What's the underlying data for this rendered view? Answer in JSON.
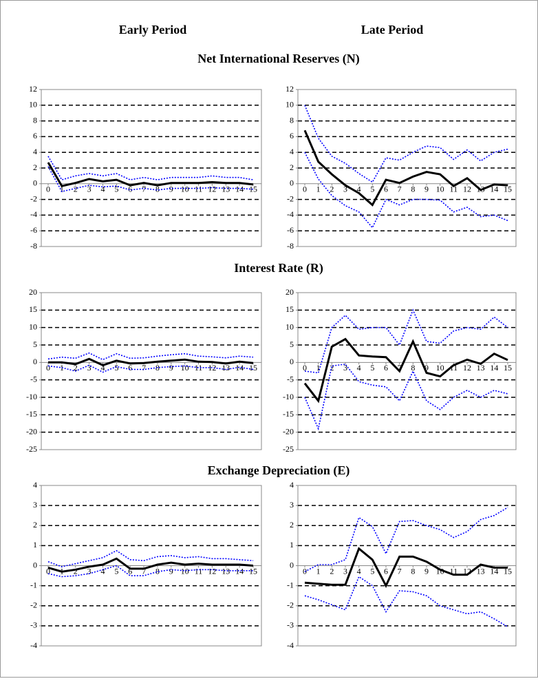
{
  "headers": [
    "Early Period",
    "Late Period"
  ],
  "section_titles": [
    "Net International Reserves (N)",
    "Interest Rate (R)",
    "Exchange Depreciation (E)"
  ],
  "chart_data": [
    {
      "type": "line",
      "x": [
        0,
        1,
        2,
        3,
        4,
        5,
        6,
        7,
        8,
        9,
        10,
        11,
        12,
        13,
        14,
        15
      ],
      "xlim": [
        0,
        15
      ],
      "xticks": [
        0,
        1,
        2,
        3,
        4,
        5,
        6,
        7,
        8,
        9,
        10,
        11,
        12,
        13,
        14,
        15
      ],
      "ylim": [
        -8,
        12
      ],
      "yticks": [
        -8,
        -6,
        -4,
        -2,
        0,
        2,
        4,
        6,
        8,
        10,
        12
      ],
      "grid": true,
      "series": [
        {
          "color": "#0000ff",
          "style": "dotted",
          "values": [
            3.5,
            0.5,
            1,
            1.3,
            1,
            1.3,
            0.5,
            0.8,
            0.5,
            0.8,
            0.8,
            0.8,
            1,
            0.8,
            0.8,
            0.5
          ]
        },
        {
          "color": "#0000ff",
          "style": "dotted",
          "values": [
            2.2,
            -1,
            -0.6,
            -0.2,
            -0.4,
            -0.3,
            -0.8,
            -0.6,
            -0.8,
            -0.6,
            -0.6,
            -0.6,
            -0.5,
            -0.6,
            -0.6,
            -0.7
          ]
        },
        {
          "color": "#000000",
          "style": "solid",
          "values": [
            2.7,
            -0.3,
            0.1,
            0.6,
            0.3,
            0.5,
            -0.2,
            0.1,
            -0.2,
            0.1,
            0.1,
            0.1,
            0.2,
            0.1,
            0.1,
            -0.1
          ]
        }
      ]
    },
    {
      "type": "line",
      "x": [
        0,
        1,
        2,
        3,
        4,
        5,
        6,
        7,
        8,
        9,
        10,
        11,
        12,
        13,
        14,
        15
      ],
      "xlim": [
        0,
        15
      ],
      "xticks": [
        0,
        1,
        2,
        3,
        4,
        5,
        6,
        7,
        8,
        9,
        10,
        11,
        12,
        13,
        14,
        15
      ],
      "ylim": [
        -8,
        12
      ],
      "yticks": [
        -8,
        -6,
        -4,
        -2,
        0,
        2,
        4,
        6,
        8,
        10,
        12
      ],
      "grid": true,
      "series": [
        {
          "color": "#0000ff",
          "style": "dotted",
          "values": [
            10,
            5.8,
            3.5,
            2.6,
            1.3,
            0.2,
            3.3,
            3,
            4,
            4.8,
            4.6,
            3.1,
            4.3,
            2.9,
            4,
            4.4
          ]
        },
        {
          "color": "#0000ff",
          "style": "dotted",
          "values": [
            4,
            0.6,
            -1.5,
            -2.8,
            -3.6,
            -5.6,
            -2,
            -2.7,
            -2,
            -2,
            -2.1,
            -3.6,
            -3,
            -4.2,
            -4,
            -4.7
          ]
        },
        {
          "color": "#000000",
          "style": "solid",
          "values": [
            6.8,
            2.8,
            1.2,
            -0.2,
            -1.2,
            -2.7,
            0.5,
            0.1,
            0.9,
            1.5,
            1.2,
            -0.3,
            0.7,
            -0.8,
            -0.1,
            -0.2
          ]
        }
      ]
    },
    {
      "type": "line",
      "x": [
        0,
        1,
        2,
        3,
        4,
        5,
        6,
        7,
        8,
        9,
        10,
        11,
        12,
        13,
        14,
        15
      ],
      "xlim": [
        0,
        15
      ],
      "xticks": [
        0,
        1,
        2,
        3,
        4,
        5,
        6,
        7,
        8,
        9,
        10,
        11,
        12,
        13,
        14,
        15
      ],
      "ylim": [
        -25,
        20
      ],
      "yticks": [
        -25,
        -20,
        -15,
        -10,
        -5,
        0,
        5,
        10,
        15,
        20
      ],
      "grid": true,
      "series": [
        {
          "color": "#0000ff",
          "style": "dotted",
          "values": [
            1,
            1.5,
            1.2,
            2.7,
            0.8,
            2.5,
            1.2,
            1.3,
            1.8,
            2.2,
            2.5,
            1.8,
            1.6,
            1.3,
            1.8,
            1.5
          ]
        },
        {
          "color": "#0000ff",
          "style": "dotted",
          "values": [
            -1,
            -1.5,
            -2.5,
            -0.8,
            -2.8,
            -1.2,
            -2,
            -2,
            -1.5,
            -1.2,
            -1,
            -1.5,
            -1.5,
            -2,
            -1.4,
            -2
          ]
        },
        {
          "color": "#000000",
          "style": "solid",
          "values": [
            0,
            0,
            -0.5,
            1,
            -0.8,
            0.5,
            -0.3,
            -0.2,
            0.2,
            0.5,
            0.8,
            0.2,
            0.1,
            -0.3,
            0.2,
            -0.2
          ]
        }
      ]
    },
    {
      "type": "line",
      "x": [
        0,
        1,
        2,
        3,
        4,
        5,
        6,
        7,
        8,
        9,
        10,
        11,
        12,
        13,
        14,
        15
      ],
      "xlim": [
        0,
        15
      ],
      "xticks": [
        0,
        1,
        2,
        3,
        4,
        5,
        6,
        7,
        8,
        9,
        10,
        11,
        12,
        13,
        14,
        15
      ],
      "ylim": [
        -25,
        20
      ],
      "yticks": [
        -25,
        -20,
        -15,
        -10,
        -5,
        0,
        5,
        10,
        15,
        20
      ],
      "grid": true,
      "series": [
        {
          "color": "#0000ff",
          "style": "dotted",
          "values": [
            -2.5,
            -3,
            10,
            13.5,
            9.5,
            10,
            10,
            5,
            15,
            6,
            5.5,
            9,
            10,
            9.5,
            13,
            10
          ]
        },
        {
          "color": "#0000ff",
          "style": "dotted",
          "values": [
            -10,
            -19,
            -1,
            -0.5,
            -5.5,
            -6.5,
            -7,
            -11,
            -2.5,
            -11,
            -13.5,
            -10,
            -8,
            -10,
            -8,
            -9
          ]
        },
        {
          "color": "#000000",
          "style": "solid",
          "values": [
            -6,
            -11,
            4.5,
            6.7,
            2,
            1.7,
            1.5,
            -2.5,
            6,
            -3,
            -4,
            -0.8,
            0.8,
            -0.4,
            2.5,
            0.7
          ]
        }
      ]
    },
    {
      "type": "line",
      "x": [
        0,
        1,
        2,
        3,
        4,
        5,
        6,
        7,
        8,
        9,
        10,
        11,
        12,
        13,
        14,
        15
      ],
      "xlim": [
        0,
        15
      ],
      "xticks": [
        0,
        1,
        2,
        3,
        4,
        5,
        6,
        7,
        8,
        9,
        10,
        11,
        12,
        13,
        14,
        15
      ],
      "ylim": [
        -4,
        4
      ],
      "yticks": [
        -4,
        -3,
        -2,
        -1,
        0,
        1,
        2,
        3,
        4
      ],
      "grid": true,
      "series": [
        {
          "color": "#0000ff",
          "style": "dotted",
          "values": [
            0.2,
            -0.05,
            0.1,
            0.25,
            0.4,
            0.75,
            0.3,
            0.25,
            0.45,
            0.5,
            0.4,
            0.45,
            0.35,
            0.35,
            0.3,
            0.25
          ]
        },
        {
          "color": "#0000ff",
          "style": "dotted",
          "values": [
            -0.4,
            -0.55,
            -0.5,
            -0.4,
            -0.2,
            0,
            -0.5,
            -0.5,
            -0.3,
            -0.2,
            -0.25,
            -0.2,
            -0.2,
            -0.25,
            -0.25,
            -0.25
          ]
        },
        {
          "color": "#000000",
          "style": "solid",
          "values": [
            -0.1,
            -0.3,
            -0.2,
            -0.05,
            0.05,
            0.35,
            -0.15,
            -0.15,
            0.05,
            0.15,
            0.05,
            0.1,
            0.05,
            0.05,
            0.05,
            0
          ]
        }
      ]
    },
    {
      "type": "line",
      "x": [
        0,
        1,
        2,
        3,
        4,
        5,
        6,
        7,
        8,
        9,
        10,
        11,
        12,
        13,
        14,
        15
      ],
      "xlim": [
        0,
        15
      ],
      "xticks": [
        0,
        1,
        2,
        3,
        4,
        5,
        6,
        7,
        8,
        9,
        10,
        11,
        12,
        13,
        14,
        15
      ],
      "ylim": [
        -4,
        4
      ],
      "yticks": [
        -4,
        -3,
        -2,
        -1,
        0,
        1,
        2,
        3,
        4
      ],
      "grid": true,
      "series": [
        {
          "color": "#0000ff",
          "style": "dotted",
          "values": [
            -0.3,
            0.05,
            0.05,
            0.3,
            2.4,
            1.95,
            0.6,
            2.2,
            2.25,
            2,
            1.8,
            1.4,
            1.7,
            2.3,
            2.5,
            2.9
          ]
        },
        {
          "color": "#0000ff",
          "style": "dotted",
          "values": [
            -1.5,
            -1.7,
            -1.95,
            -2.2,
            -0.55,
            -1,
            -2.3,
            -1.25,
            -1.3,
            -1.5,
            -2,
            -2.2,
            -2.4,
            -2.3,
            -2.65,
            -3.05
          ]
        },
        {
          "color": "#000000",
          "style": "solid",
          "values": [
            -0.85,
            -0.9,
            -0.95,
            -0.95,
            0.85,
            0.3,
            -1,
            0.45,
            0.45,
            0.2,
            -0.2,
            -0.45,
            -0.45,
            0.05,
            -0.1,
            -0.1
          ]
        }
      ]
    }
  ]
}
